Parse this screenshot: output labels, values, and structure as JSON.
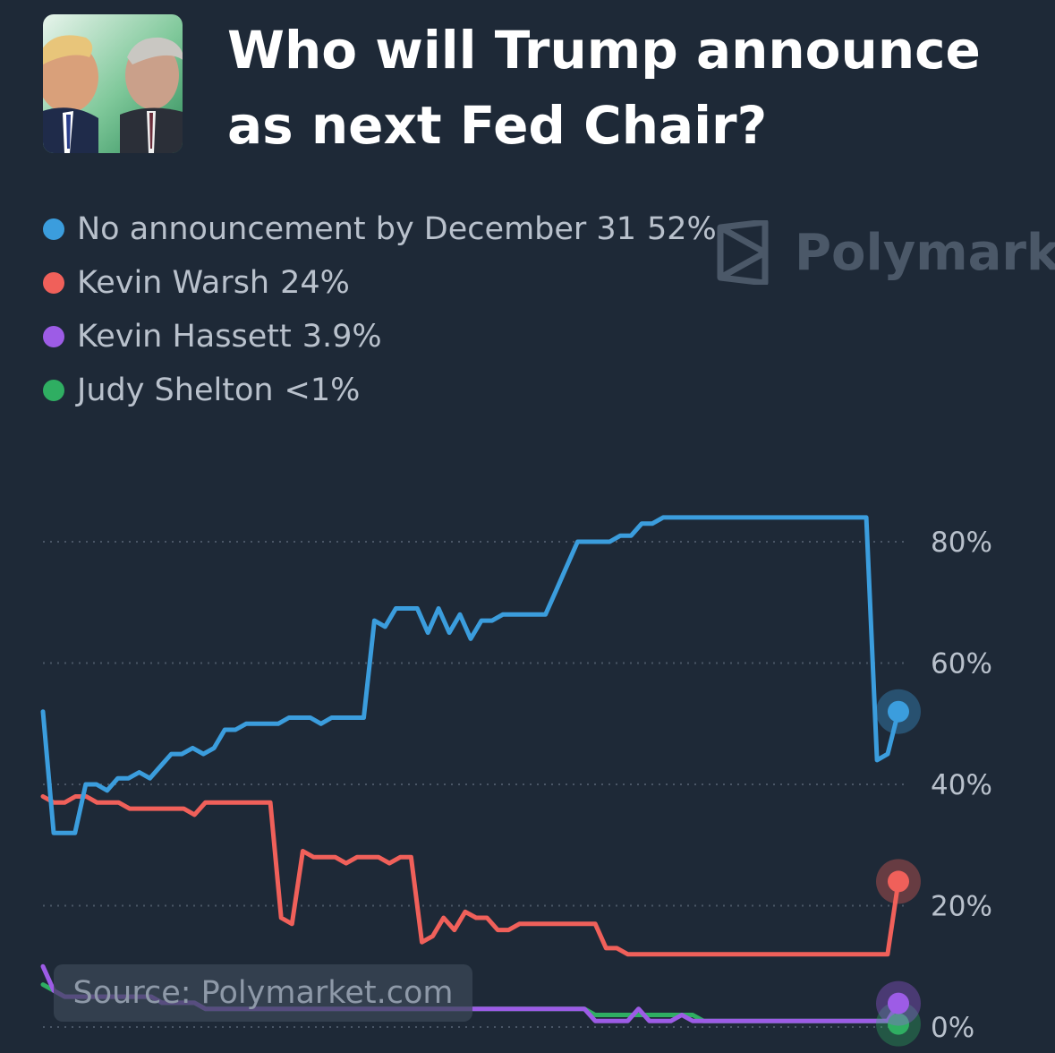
{
  "header": {
    "title": "Who will Trump announce as next Fed Chair?"
  },
  "watermark": {
    "text": "Polymarke"
  },
  "source": {
    "text": "Source: Polymarket.com"
  },
  "colors": {
    "background": "#1e2937",
    "blue": "#3b9ddd",
    "red": "#f0605a",
    "purple": "#9d5ce6",
    "green": "#2fae62"
  },
  "chart_data": {
    "type": "line",
    "ylim": [
      0,
      85
    ],
    "yticks": [
      0,
      20,
      40,
      60,
      80
    ],
    "ytick_labels": [
      "0%",
      "20%",
      "40%",
      "60%",
      "80%"
    ],
    "grid": true,
    "legend_position": "top-left",
    "series": [
      {
        "name": "No announcement by December 31",
        "label": "52%",
        "color": "#3b9ddd",
        "values": [
          52,
          32,
          32,
          32,
          40,
          40,
          39,
          41,
          41,
          42,
          41,
          43,
          45,
          45,
          46,
          45,
          46,
          49,
          49,
          50,
          50,
          50,
          50,
          51,
          51,
          51,
          50,
          51,
          51,
          51,
          51,
          67,
          66,
          69,
          69,
          69,
          65,
          69,
          65,
          68,
          64,
          67,
          67,
          68,
          68,
          68,
          68,
          68,
          72,
          76,
          80,
          80,
          80,
          80,
          81,
          81,
          83,
          83,
          84,
          84,
          84,
          84,
          84,
          84,
          84,
          84,
          84,
          84,
          84,
          84,
          84,
          84,
          84,
          84,
          84,
          84,
          84,
          84,
          44,
          45,
          52
        ]
      },
      {
        "name": "Kevin Warsh",
        "label": "24%",
        "color": "#f0605a",
        "values": [
          38,
          37,
          37,
          38,
          38,
          37,
          37,
          37,
          36,
          36,
          36,
          36,
          36,
          36,
          35,
          37,
          37,
          37,
          37,
          37,
          37,
          37,
          18,
          17,
          29,
          28,
          28,
          28,
          27,
          28,
          28,
          28,
          27,
          28,
          28,
          14,
          15,
          18,
          16,
          19,
          18,
          18,
          16,
          16,
          17,
          17,
          17,
          17,
          17,
          17,
          17,
          17,
          13,
          13,
          12,
          12,
          12,
          12,
          12,
          12,
          12,
          12,
          12,
          12,
          12,
          12,
          12,
          12,
          12,
          12,
          12,
          12,
          12,
          12,
          12,
          12,
          12,
          12,
          12,
          24
        ]
      },
      {
        "name": "Kevin Hassett",
        "label": "3.9%",
        "color": "#9d5ce6",
        "values": [
          10,
          6,
          5,
          5,
          5,
          5,
          5,
          5,
          5,
          5,
          5,
          4,
          4,
          4,
          4,
          3,
          3,
          3,
          3,
          3,
          3,
          3,
          3,
          3,
          3,
          3,
          3,
          3,
          3,
          3,
          3,
          3,
          3,
          3,
          3,
          3,
          3,
          3,
          3,
          3,
          3,
          3,
          3,
          3,
          3,
          3,
          3,
          3,
          3,
          3,
          3,
          1,
          1,
          1,
          1,
          3,
          1,
          1,
          1,
          2,
          1,
          1,
          1,
          1,
          1,
          1,
          1,
          1,
          1,
          1,
          1,
          1,
          1,
          1,
          1,
          1,
          1,
          1,
          1,
          3.9
        ]
      },
      {
        "name": "Judy Shelton",
        "label": "<1%",
        "color": "#2fae62",
        "values": [
          7,
          6,
          5,
          5,
          5,
          5,
          5,
          5,
          5,
          5,
          5,
          4,
          4,
          4,
          4,
          3,
          3,
          3,
          3,
          3,
          3,
          3,
          3,
          3,
          3,
          3,
          3,
          3,
          3,
          3,
          3,
          3,
          3,
          3,
          3,
          3,
          3,
          3,
          3,
          3,
          3,
          3,
          3,
          3,
          3,
          3,
          3,
          3,
          3,
          3,
          3,
          2,
          2,
          2,
          2,
          2,
          2,
          2,
          2,
          2,
          2,
          1,
          1,
          1,
          1,
          1,
          1,
          1,
          1,
          1,
          1,
          1,
          1,
          1,
          1,
          1,
          1,
          1,
          1,
          0.5
        ]
      }
    ]
  }
}
